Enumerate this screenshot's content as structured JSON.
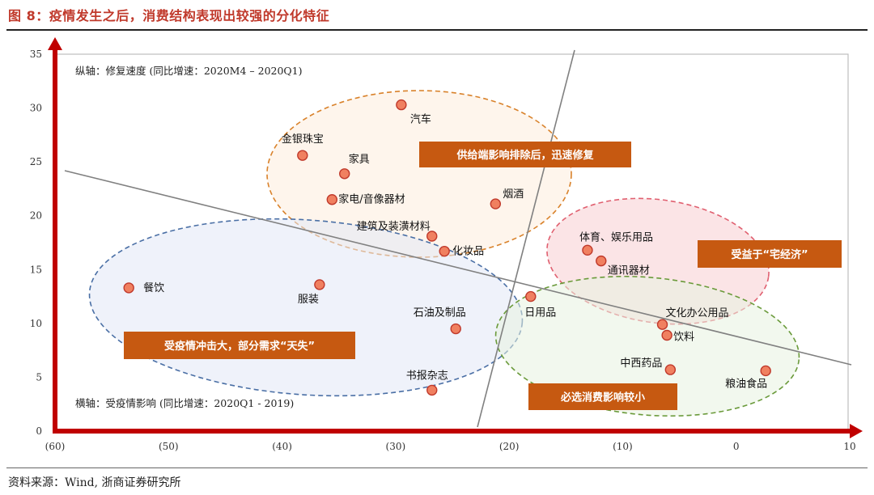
{
  "figure": {
    "title": "图 8：疫情发生之后，消费结构表现出较强的分化特征",
    "source": "资料来源：Wind, 浙商证券研究所"
  },
  "chart_data": {
    "type": "scatter",
    "xlabel": "横轴：受疫情影响 (同比增速：2020Q1 - 2019)",
    "ylabel": "纵轴：修复速度 (同比增速：2020M4 – 2020Q1)",
    "xlim": [
      -60,
      10
    ],
    "ylim": [
      0,
      35
    ],
    "x_ticks": [
      "(60)",
      "(50)",
      "(40)",
      "(30)",
      "(20)",
      "(10)",
      "0",
      "10"
    ],
    "x_tick_values": [
      -60,
      -50,
      -40,
      -30,
      -20,
      -10,
      0,
      10
    ],
    "y_ticks": [
      "0",
      "5",
      "10",
      "15",
      "20",
      "25",
      "30",
      "35"
    ],
    "y_tick_values": [
      0,
      5,
      10,
      15,
      20,
      25,
      30,
      35
    ],
    "point_color": "#f08060",
    "points": [
      {
        "label": "汽车",
        "x": -29.5,
        "y": 30.3
      },
      {
        "label": "金银珠宝",
        "x": -38.2,
        "y": 25.6
      },
      {
        "label": "家具",
        "x": -34.5,
        "y": 23.9
      },
      {
        "label": "家电/音像器材",
        "x": -35.6,
        "y": 21.5
      },
      {
        "label": "烟酒",
        "x": -21.2,
        "y": 21.1
      },
      {
        "label": "建筑及装潢材料",
        "x": -26.8,
        "y": 18.1
      },
      {
        "label": "化妆品",
        "x": -25.7,
        "y": 16.7
      },
      {
        "label": "餐饮",
        "x": -53.5,
        "y": 13.3
      },
      {
        "label": "服装",
        "x": -36.7,
        "y": 13.6
      },
      {
        "label": "石油及制品",
        "x": -24.7,
        "y": 9.5
      },
      {
        "label": "书报杂志",
        "x": -26.8,
        "y": 3.8
      },
      {
        "label": "日用品",
        "x": -18.1,
        "y": 12.5
      },
      {
        "label": "体育、娱乐用品",
        "x": -13.1,
        "y": 16.8
      },
      {
        "label": "通讯器材",
        "x": -11.9,
        "y": 15.8
      },
      {
        "label": "文化办公用品",
        "x": -6.5,
        "y": 9.9
      },
      {
        "label": "饮料",
        "x": -6.1,
        "y": 8.9
      },
      {
        "label": "中西药品",
        "x": -5.8,
        "y": 5.7
      },
      {
        "label": "粮油食品",
        "x": 2.6,
        "y": 5.6
      }
    ],
    "callouts": [
      {
        "text": "供给端影响排除后，迅速修复"
      },
      {
        "text": "受益于“宅经济”"
      },
      {
        "text": "受疫情冲击大，部分需求“天失”"
      },
      {
        "text": "必选消费影响较小"
      }
    ],
    "colors": {
      "axis": "#c00000",
      "callout_fill": "#c65911",
      "ellipse_top": "#d9822b",
      "ellipse_right": "#e06070",
      "ellipse_left": "#4a6fa5",
      "ellipse_bottom": "#6a9a3a"
    }
  }
}
